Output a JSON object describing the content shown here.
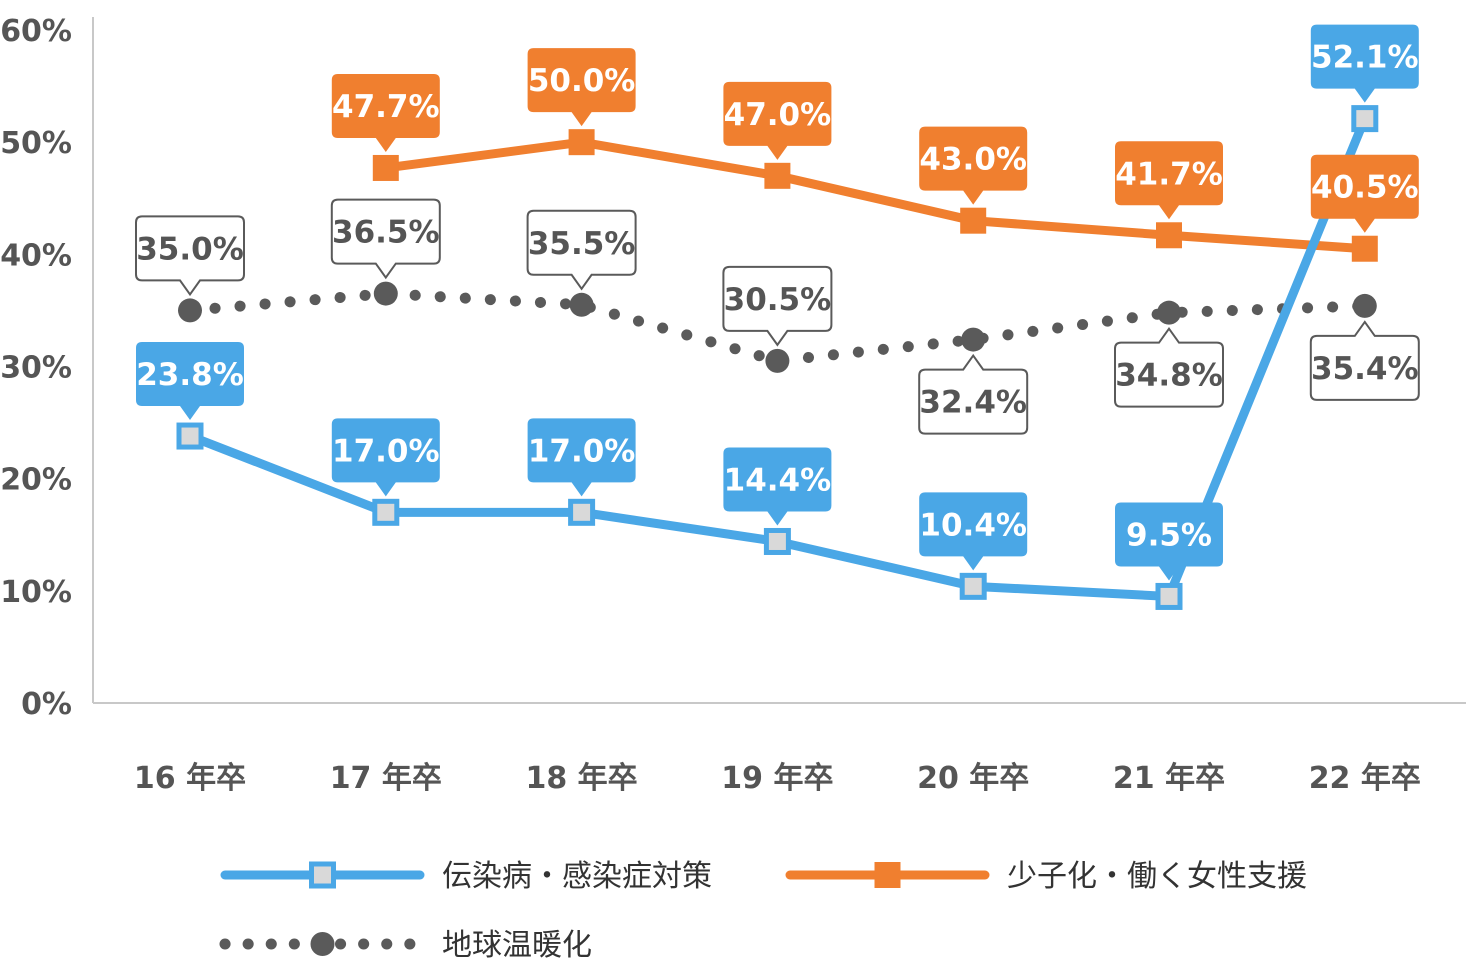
{
  "chart_data": {
    "type": "line",
    "categories": [
      "16 年卒",
      "17 年卒",
      "18 年卒",
      "19 年卒",
      "20 年卒",
      "21 年卒",
      "22 年卒"
    ],
    "ylim": [
      0,
      60
    ],
    "yticks": [
      "0%",
      "10%",
      "20%",
      "30%",
      "40%",
      "50%",
      "60%"
    ],
    "grid": false,
    "legend_position": "bottom",
    "series": [
      {
        "name": "伝染病・感染症対策",
        "color": "#4aa7e6",
        "marker": "square-hollow",
        "line_style": "solid",
        "label_style": "filled",
        "values": [
          23.8,
          17.0,
          17.0,
          14.4,
          10.4,
          9.5,
          52.1
        ],
        "labels": [
          "23.8%",
          "17.0%",
          "17.0%",
          "14.4%",
          "10.4%",
          "9.5%",
          "52.1%"
        ],
        "label_side": [
          "above",
          "above",
          "above",
          "above",
          "above",
          "above",
          "above"
        ]
      },
      {
        "name": "少子化・働く女性支援",
        "color": "#f07f2f",
        "marker": "square-filled",
        "line_style": "solid",
        "label_style": "filled",
        "values": [
          null,
          47.7,
          50.0,
          47.0,
          43.0,
          41.7,
          40.5
        ],
        "labels": [
          null,
          "47.7%",
          "50.0%",
          "47.0%",
          "43.0%",
          "41.7%",
          "40.5%"
        ],
        "label_side": [
          null,
          "above",
          "above",
          "above",
          "above",
          "above",
          "above"
        ]
      },
      {
        "name": "地球温暖化",
        "color": "#5a5a5a",
        "marker": "circle",
        "line_style": "dotted",
        "label_style": "outline",
        "values": [
          35.0,
          36.5,
          35.5,
          30.5,
          32.4,
          34.8,
          35.4
        ],
        "labels": [
          "35.0%",
          "36.5%",
          "35.5%",
          "30.5%",
          "32.4%",
          "34.8%",
          "35.4%"
        ],
        "label_side": [
          "above",
          "above",
          "above",
          "above",
          "below",
          "below",
          "below"
        ]
      }
    ]
  }
}
